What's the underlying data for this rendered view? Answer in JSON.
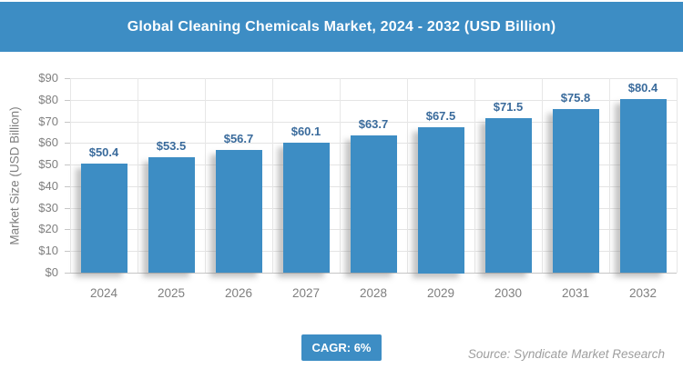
{
  "header": {
    "title": "Global Cleaning Chemicals Market, 2024 - 2032 (USD Billion)"
  },
  "colors": {
    "accent_blue": "#3d8dc4",
    "data_label_blue": "#3a6b9c",
    "axis_text_gray": "#7f7f7f",
    "gridline_gray": "#e4e4e4",
    "source_gray": "#9e9e9e"
  },
  "chart_data": {
    "type": "bar",
    "title": "Global Cleaning Chemicals Market, 2024 - 2032 (USD Billion)",
    "categories": [
      "2024",
      "2025",
      "2026",
      "2027",
      "2028",
      "2029",
      "2030",
      "2031",
      "2032"
    ],
    "values": [
      50.4,
      53.5,
      56.7,
      60.1,
      63.7,
      67.5,
      71.5,
      75.8,
      80.4
    ],
    "value_labels": [
      "$50.4",
      "$53.5",
      "$56.7",
      "$60.1",
      "$63.7",
      "$67.5",
      "$71.5",
      "$75.8",
      "$80.4"
    ],
    "xlabel": "",
    "ylabel": "Market Size (USD Billion)",
    "ylim": [
      0,
      90
    ],
    "ytick_step": 10,
    "ytick_labels": [
      "$0",
      "$10",
      "$20",
      "$30",
      "$40",
      "$50",
      "$60",
      "$70",
      "$80",
      "$90"
    ],
    "grid": "horizontal and vertical",
    "legend": "none",
    "bar_color": "#3d8dc4"
  },
  "footer": {
    "cagr_label": "CAGR: 6%",
    "source": "Source: Syndicate Market Research"
  }
}
